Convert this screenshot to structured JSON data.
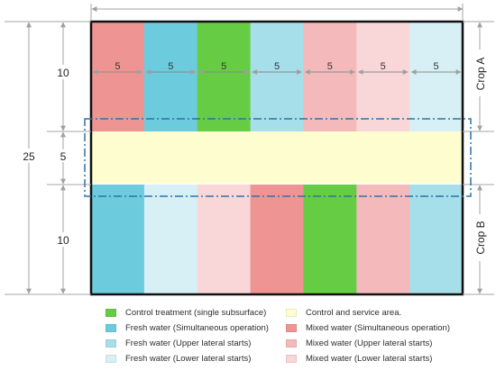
{
  "plot": {
    "total_width_label": "",
    "column_width_label": "5",
    "total_height_label": "25",
    "crop_a_height_label": "10",
    "service_height_label": "5",
    "crop_b_height_label": "10",
    "crop_a_label": "Crop A",
    "crop_b_label": "Crop B"
  },
  "colors": {
    "control_treatment": "#66cc44",
    "fresh_simultaneous": "#6ccbdc",
    "fresh_upper": "#a6dfe9",
    "fresh_lower": "#d6f0f6",
    "mixed_simultaneous": "#ee9594",
    "mixed_upper": "#f4b9bb",
    "mixed_lower": "#f9d6d8",
    "service_area": "#fefdd0",
    "dash_outline": "#2f72a8",
    "dimension_line": "#a6a6a6",
    "plot_border": "#111111"
  },
  "crop_a_columns": [
    "mixed_simultaneous",
    "fresh_simultaneous",
    "control_treatment",
    "fresh_upper",
    "mixed_upper",
    "mixed_lower",
    "fresh_lower"
  ],
  "crop_b_columns": [
    "fresh_simultaneous",
    "fresh_lower",
    "mixed_lower",
    "mixed_simultaneous",
    "control_treatment",
    "mixed_upper",
    "fresh_upper"
  ],
  "legend": [
    {
      "key": "control_treatment",
      "label": "Control treatment (single subsurface)"
    },
    {
      "key": "service_area",
      "label": "Control and service area."
    },
    {
      "key": "fresh_simultaneous",
      "label": "Fresh water (Simultaneous operation)"
    },
    {
      "key": "mixed_simultaneous",
      "label": "Mixed water (Simultaneous operation)"
    },
    {
      "key": "fresh_upper",
      "label": "Fresh water (Upper lateral starts)"
    },
    {
      "key": "mixed_upper",
      "label": "Mixed water (Upper lateral starts)"
    },
    {
      "key": "fresh_lower",
      "label": "Fresh water (Lower lateral starts)"
    },
    {
      "key": "mixed_lower",
      "label": "Mixed water (Lower lateral starts)"
    }
  ]
}
